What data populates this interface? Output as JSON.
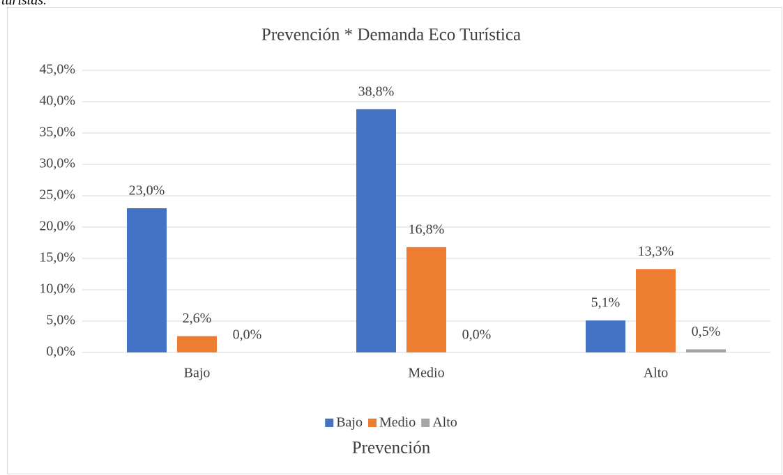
{
  "caption": "turistas.",
  "chart_data": {
    "type": "bar",
    "title": "Prevención * Demanda Eco Turística",
    "x_label": "Prevención",
    "categories": [
      "Bajo",
      "Medio",
      "Alto"
    ],
    "series": [
      {
        "name": "Bajo",
        "color": "#4472c4",
        "values": [
          23.0,
          38.8,
          5.1
        ],
        "value_labels": [
          "23,0%",
          "38,8%",
          "5,1%"
        ]
      },
      {
        "name": "Medio",
        "color": "#ed7d31",
        "values": [
          2.6,
          16.8,
          13.3
        ],
        "value_labels": [
          "2,6%",
          "16,8%",
          "13,3%"
        ]
      },
      {
        "name": "Alto",
        "color": "#a5a5a5",
        "values": [
          0.0,
          0.0,
          0.5
        ],
        "value_labels": [
          "0,0%",
          "0,0%",
          "0,5%"
        ]
      }
    ],
    "ylim": [
      0,
      45
    ],
    "yticks": [
      {
        "value": 0,
        "label": "0,0%"
      },
      {
        "value": 5,
        "label": "5,0%"
      },
      {
        "value": 10,
        "label": "10,0%"
      },
      {
        "value": 15,
        "label": "15,0%"
      },
      {
        "value": 20,
        "label": "20,0%"
      },
      {
        "value": 25,
        "label": "25,0%"
      },
      {
        "value": 30,
        "label": "30,0%"
      },
      {
        "value": 35,
        "label": "35,0%"
      },
      {
        "value": 40,
        "label": "40,0%"
      },
      {
        "value": 45,
        "label": "45,0%"
      }
    ],
    "grid": true,
    "legend": "bottom"
  }
}
